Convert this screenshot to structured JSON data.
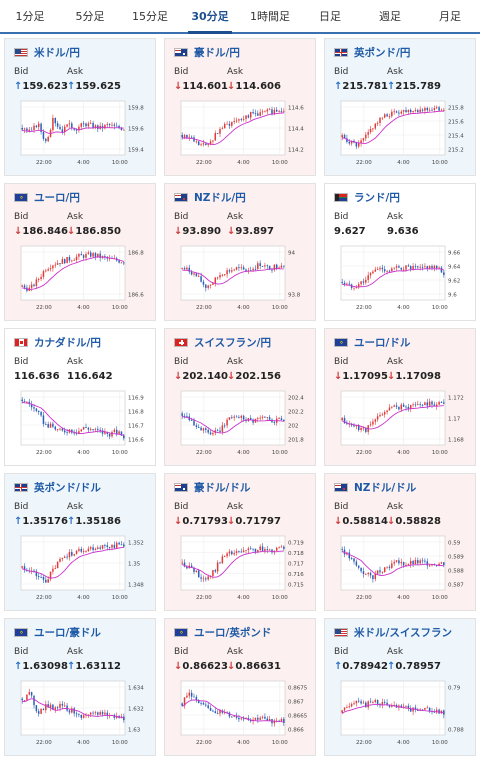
{
  "tabs": [
    {
      "label": "1分足",
      "active": false
    },
    {
      "label": "5分足",
      "active": false
    },
    {
      "label": "15分足",
      "active": false
    },
    {
      "label": "30分足",
      "active": true
    },
    {
      "label": "1時間足",
      "active": false
    },
    {
      "label": "日足",
      "active": false
    },
    {
      "label": "週足",
      "active": false
    },
    {
      "label": "月足",
      "active": false
    }
  ],
  "labels": {
    "bid": "Bid",
    "ask": "Ask"
  },
  "colors": {
    "up_arrow": "#2a72c8",
    "down_arrow": "#d03a3a",
    "candle_up": "#e23a3a",
    "candle_down": "#2b5fb8",
    "ma_line": "#cc33cc",
    "card_up": "#eef6fc",
    "card_down": "#fdf0f0"
  },
  "cards": [
    {
      "pair": "米ドル/円",
      "flag": "us",
      "bid": "159.623",
      "ask": "159.625",
      "dir": "up",
      "chart": {
        "yticks": [
          "159.8",
          "159.6",
          "159.4"
        ],
        "xticks": [
          "22:00",
          "4:00",
          "10:00"
        ],
        "trend": [
          0.5,
          0.4,
          0.6,
          0.2,
          0.7,
          0.45,
          0.55,
          0.5,
          0.6,
          0.55,
          0.5,
          0.58,
          0.52,
          0.5
        ]
      }
    },
    {
      "pair": "豪ドル/円",
      "flag": "au",
      "bid": "114.601",
      "ask": "114.606",
      "dir": "down",
      "chart": {
        "yticks": [
          "114.6",
          "114.4",
          "114.2"
        ],
        "xticks": [
          "22:00",
          "4:00",
          "10:00"
        ],
        "trend": [
          0.35,
          0.3,
          0.15,
          0.1,
          0.3,
          0.5,
          0.6,
          0.7,
          0.75,
          0.8,
          0.82,
          0.85,
          0.88,
          0.9
        ]
      }
    },
    {
      "pair": "英ポンド/円",
      "flag": "gb",
      "bid": "215.781",
      "ask": "215.789",
      "dir": "up",
      "chart": {
        "yticks": [
          "215.8",
          "215.6",
          "215.4",
          "215.2"
        ],
        "xticks": [
          "22:00",
          "4:00",
          "10:00"
        ],
        "trend": [
          0.3,
          0.2,
          0.1,
          0.3,
          0.55,
          0.7,
          0.8,
          0.85,
          0.88,
          0.9,
          0.9,
          0.92,
          0.9,
          0.93
        ]
      }
    },
    {
      "pair": "ユーロ/円",
      "flag": "eu",
      "bid": "186.846",
      "ask": "186.850",
      "dir": "down",
      "chart": {
        "yticks": [
          "186.8",
          "186.6"
        ],
        "xticks": [
          "22:00",
          "4:00",
          "10:00"
        ],
        "trend": [
          0.2,
          0.15,
          0.35,
          0.6,
          0.7,
          0.75,
          0.8,
          0.85,
          0.88,
          0.9,
          0.85,
          0.8,
          0.78,
          0.75
        ]
      }
    },
    {
      "pair": "NZドル/円",
      "flag": "nz",
      "bid": "93.890",
      "ask": "93.897",
      "dir": "down",
      "chart": {
        "yticks": [
          "94",
          "93.8"
        ],
        "xticks": [
          "22:00",
          "4:00",
          "10:00"
        ],
        "trend": [
          0.6,
          0.55,
          0.4,
          0.2,
          0.3,
          0.5,
          0.55,
          0.6,
          0.55,
          0.6,
          0.7,
          0.6,
          0.65,
          0.7
        ]
      }
    },
    {
      "pair": "ランド/円",
      "flag": "za",
      "bid": "9.627",
      "ask": "9.636",
      "dir": "flat",
      "chart": {
        "yticks": [
          "9.66",
          "9.64",
          "9.62",
          "9.6"
        ],
        "xticks": [
          "22:00",
          "4:00",
          "10:00"
        ],
        "trend": [
          0.3,
          0.2,
          0.25,
          0.35,
          0.55,
          0.6,
          0.55,
          0.6,
          0.62,
          0.6,
          0.58,
          0.65,
          0.6,
          0.5
        ]
      }
    },
    {
      "pair": "カナダドル/円",
      "flag": "ca",
      "bid": "116.636",
      "ask": "116.642",
      "dir": "flat",
      "chart": {
        "yticks": [
          "116.9",
          "116.8",
          "116.7",
          "116.6"
        ],
        "xticks": [
          "22:00",
          "4:00",
          "10:00"
        ],
        "trend": [
          0.9,
          0.8,
          0.6,
          0.35,
          0.3,
          0.2,
          0.25,
          0.2,
          0.3,
          0.25,
          0.2,
          0.15,
          0.2,
          0.1
        ]
      }
    },
    {
      "pair": "スイスフラン/円",
      "flag": "ch",
      "bid": "202.140",
      "ask": "202.156",
      "dir": "down",
      "chart": {
        "yticks": [
          "202.4",
          "202.2",
          "202",
          "201.8"
        ],
        "xticks": [
          "22:00",
          "4:00",
          "10:00"
        ],
        "trend": [
          0.6,
          0.5,
          0.3,
          0.2,
          0.15,
          0.25,
          0.5,
          0.55,
          0.5,
          0.45,
          0.5,
          0.48,
          0.45,
          0.47
        ]
      }
    },
    {
      "pair": "ユーロ/ドル",
      "flag": "eu",
      "bid": "1.17095",
      "ask": "1.17098",
      "dir": "down",
      "chart": {
        "yticks": [
          "1.172",
          "1.17",
          "1.168"
        ],
        "xticks": [
          "22:00",
          "4:00",
          "10:00"
        ],
        "trend": [
          0.45,
          0.35,
          0.3,
          0.25,
          0.4,
          0.6,
          0.7,
          0.75,
          0.72,
          0.78,
          0.8,
          0.82,
          0.8,
          0.85
        ]
      }
    },
    {
      "pair": "英ポンド/ドル",
      "flag": "gb",
      "bid": "1.35176",
      "ask": "1.35186",
      "dir": "up",
      "chart": {
        "yticks": [
          "1.352",
          "1.35",
          "1.348"
        ],
        "xticks": [
          "22:00",
          "4:00",
          "10:00"
        ],
        "trend": [
          0.4,
          0.35,
          0.2,
          0.1,
          0.35,
          0.6,
          0.7,
          0.75,
          0.8,
          0.82,
          0.85,
          0.86,
          0.88,
          0.9
        ]
      }
    },
    {
      "pair": "豪ドル/ドル",
      "flag": "au",
      "bid": "0.71793",
      "ask": "0.71797",
      "dir": "down",
      "chart": {
        "yticks": [
          "0.719",
          "0.718",
          "0.717",
          "0.716",
          "0.715"
        ],
        "xticks": [
          "22:00",
          "4:00",
          "10:00"
        ],
        "trend": [
          0.5,
          0.4,
          0.25,
          0.15,
          0.3,
          0.6,
          0.7,
          0.72,
          0.75,
          0.78,
          0.8,
          0.76,
          0.82,
          0.85
        ]
      }
    },
    {
      "pair": "NZドル/ドル",
      "flag": "nz",
      "bid": "0.58814",
      "ask": "0.58828",
      "dir": "down",
      "chart": {
        "yticks": [
          "0.59",
          "0.589",
          "0.588",
          "0.587"
        ],
        "xticks": [
          "22:00",
          "4:00",
          "10:00"
        ],
        "trend": [
          0.8,
          0.6,
          0.4,
          0.25,
          0.2,
          0.35,
          0.45,
          0.5,
          0.48,
          0.5,
          0.52,
          0.5,
          0.48,
          0.5
        ]
      }
    },
    {
      "pair": "ユーロ/豪ドル",
      "flag": "eu",
      "bid": "1.63098",
      "ask": "1.63112",
      "dir": "up",
      "chart": {
        "yticks": [
          "1.634",
          "1.632",
          "1.63"
        ],
        "xticks": [
          "22:00",
          "4:00",
          "10:00"
        ],
        "trend": [
          0.7,
          0.8,
          0.4,
          0.55,
          0.5,
          0.6,
          0.45,
          0.4,
          0.3,
          0.35,
          0.4,
          0.35,
          0.3,
          0.28
        ]
      }
    },
    {
      "pair": "ユーロ/英ポンド",
      "flag": "eu",
      "bid": "0.86623",
      "ask": "0.86631",
      "dir": "down",
      "chart": {
        "yticks": [
          "0.8675",
          "0.867",
          "0.8665",
          "0.866"
        ],
        "xticks": [
          "22:00",
          "4:00",
          "10:00"
        ],
        "trend": [
          0.6,
          0.85,
          0.6,
          0.5,
          0.45,
          0.4,
          0.35,
          0.3,
          0.3,
          0.25,
          0.3,
          0.2,
          0.25,
          0.22
        ]
      }
    },
    {
      "pair": "米ドル/スイスフラン",
      "flag": "us",
      "bid": "0.78942",
      "ask": "0.78957",
      "dir": "up",
      "chart": {
        "yticks": [
          "0.79",
          "0.788"
        ],
        "xticks": [
          "22:00",
          "4:00",
          "10:00"
        ],
        "trend": [
          0.4,
          0.6,
          0.7,
          0.55,
          0.65,
          0.6,
          0.55,
          0.5,
          0.5,
          0.45,
          0.5,
          0.45,
          0.42,
          0.4
        ]
      }
    }
  ]
}
